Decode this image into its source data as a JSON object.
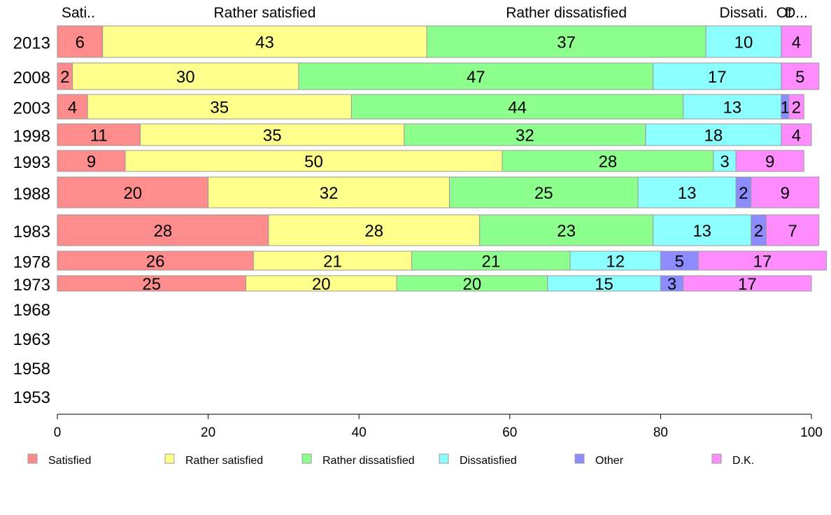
{
  "chart_data": {
    "type": "bar",
    "orientation": "horizontal",
    "stacked": true,
    "categories": [
      "2013",
      "2008",
      "2003",
      "1998",
      "1993",
      "1988",
      "1983",
      "1978",
      "1973",
      "1968",
      "1963",
      "1958",
      "1953"
    ],
    "series": [
      {
        "name": "Satisfied",
        "color": "#ff8c8c",
        "values": [
          6,
          2,
          4,
          11,
          9,
          20,
          28,
          26,
          25,
          null,
          null,
          null,
          null
        ]
      },
      {
        "name": "Rather satisfied",
        "color": "#ffff8c",
        "values": [
          43,
          30,
          35,
          35,
          50,
          32,
          28,
          21,
          20,
          null,
          null,
          null,
          null
        ]
      },
      {
        "name": "Rather dissatisfied",
        "color": "#8cff8c",
        "values": [
          37,
          47,
          44,
          32,
          28,
          25,
          23,
          21,
          20,
          null,
          null,
          null,
          null
        ]
      },
      {
        "name": "Dissatisfied",
        "color": "#8cffff",
        "values": [
          10,
          17,
          13,
          18,
          3,
          13,
          13,
          12,
          15,
          null,
          null,
          null,
          null
        ]
      },
      {
        "name": "Other",
        "color": "#8c8cff",
        "values": [
          0,
          0,
          1,
          0,
          0,
          2,
          2,
          5,
          3,
          null,
          null,
          null,
          null
        ]
      },
      {
        "name": "D.K.",
        "color": "#ff8cff",
        "values": [
          4,
          5,
          2,
          4,
          9,
          9,
          7,
          17,
          17,
          null,
          null,
          null,
          null
        ]
      }
    ],
    "top_labels": [
      "Sati..",
      "Rather satisfied",
      "Rather dissatisfied",
      "Dissati.",
      "Ot",
      "D..."
    ],
    "xlim": [
      0,
      100
    ],
    "xticks": [
      "0",
      "20",
      "40",
      "60",
      "80",
      "100"
    ],
    "legend_position": "bottom",
    "grid": false
  }
}
